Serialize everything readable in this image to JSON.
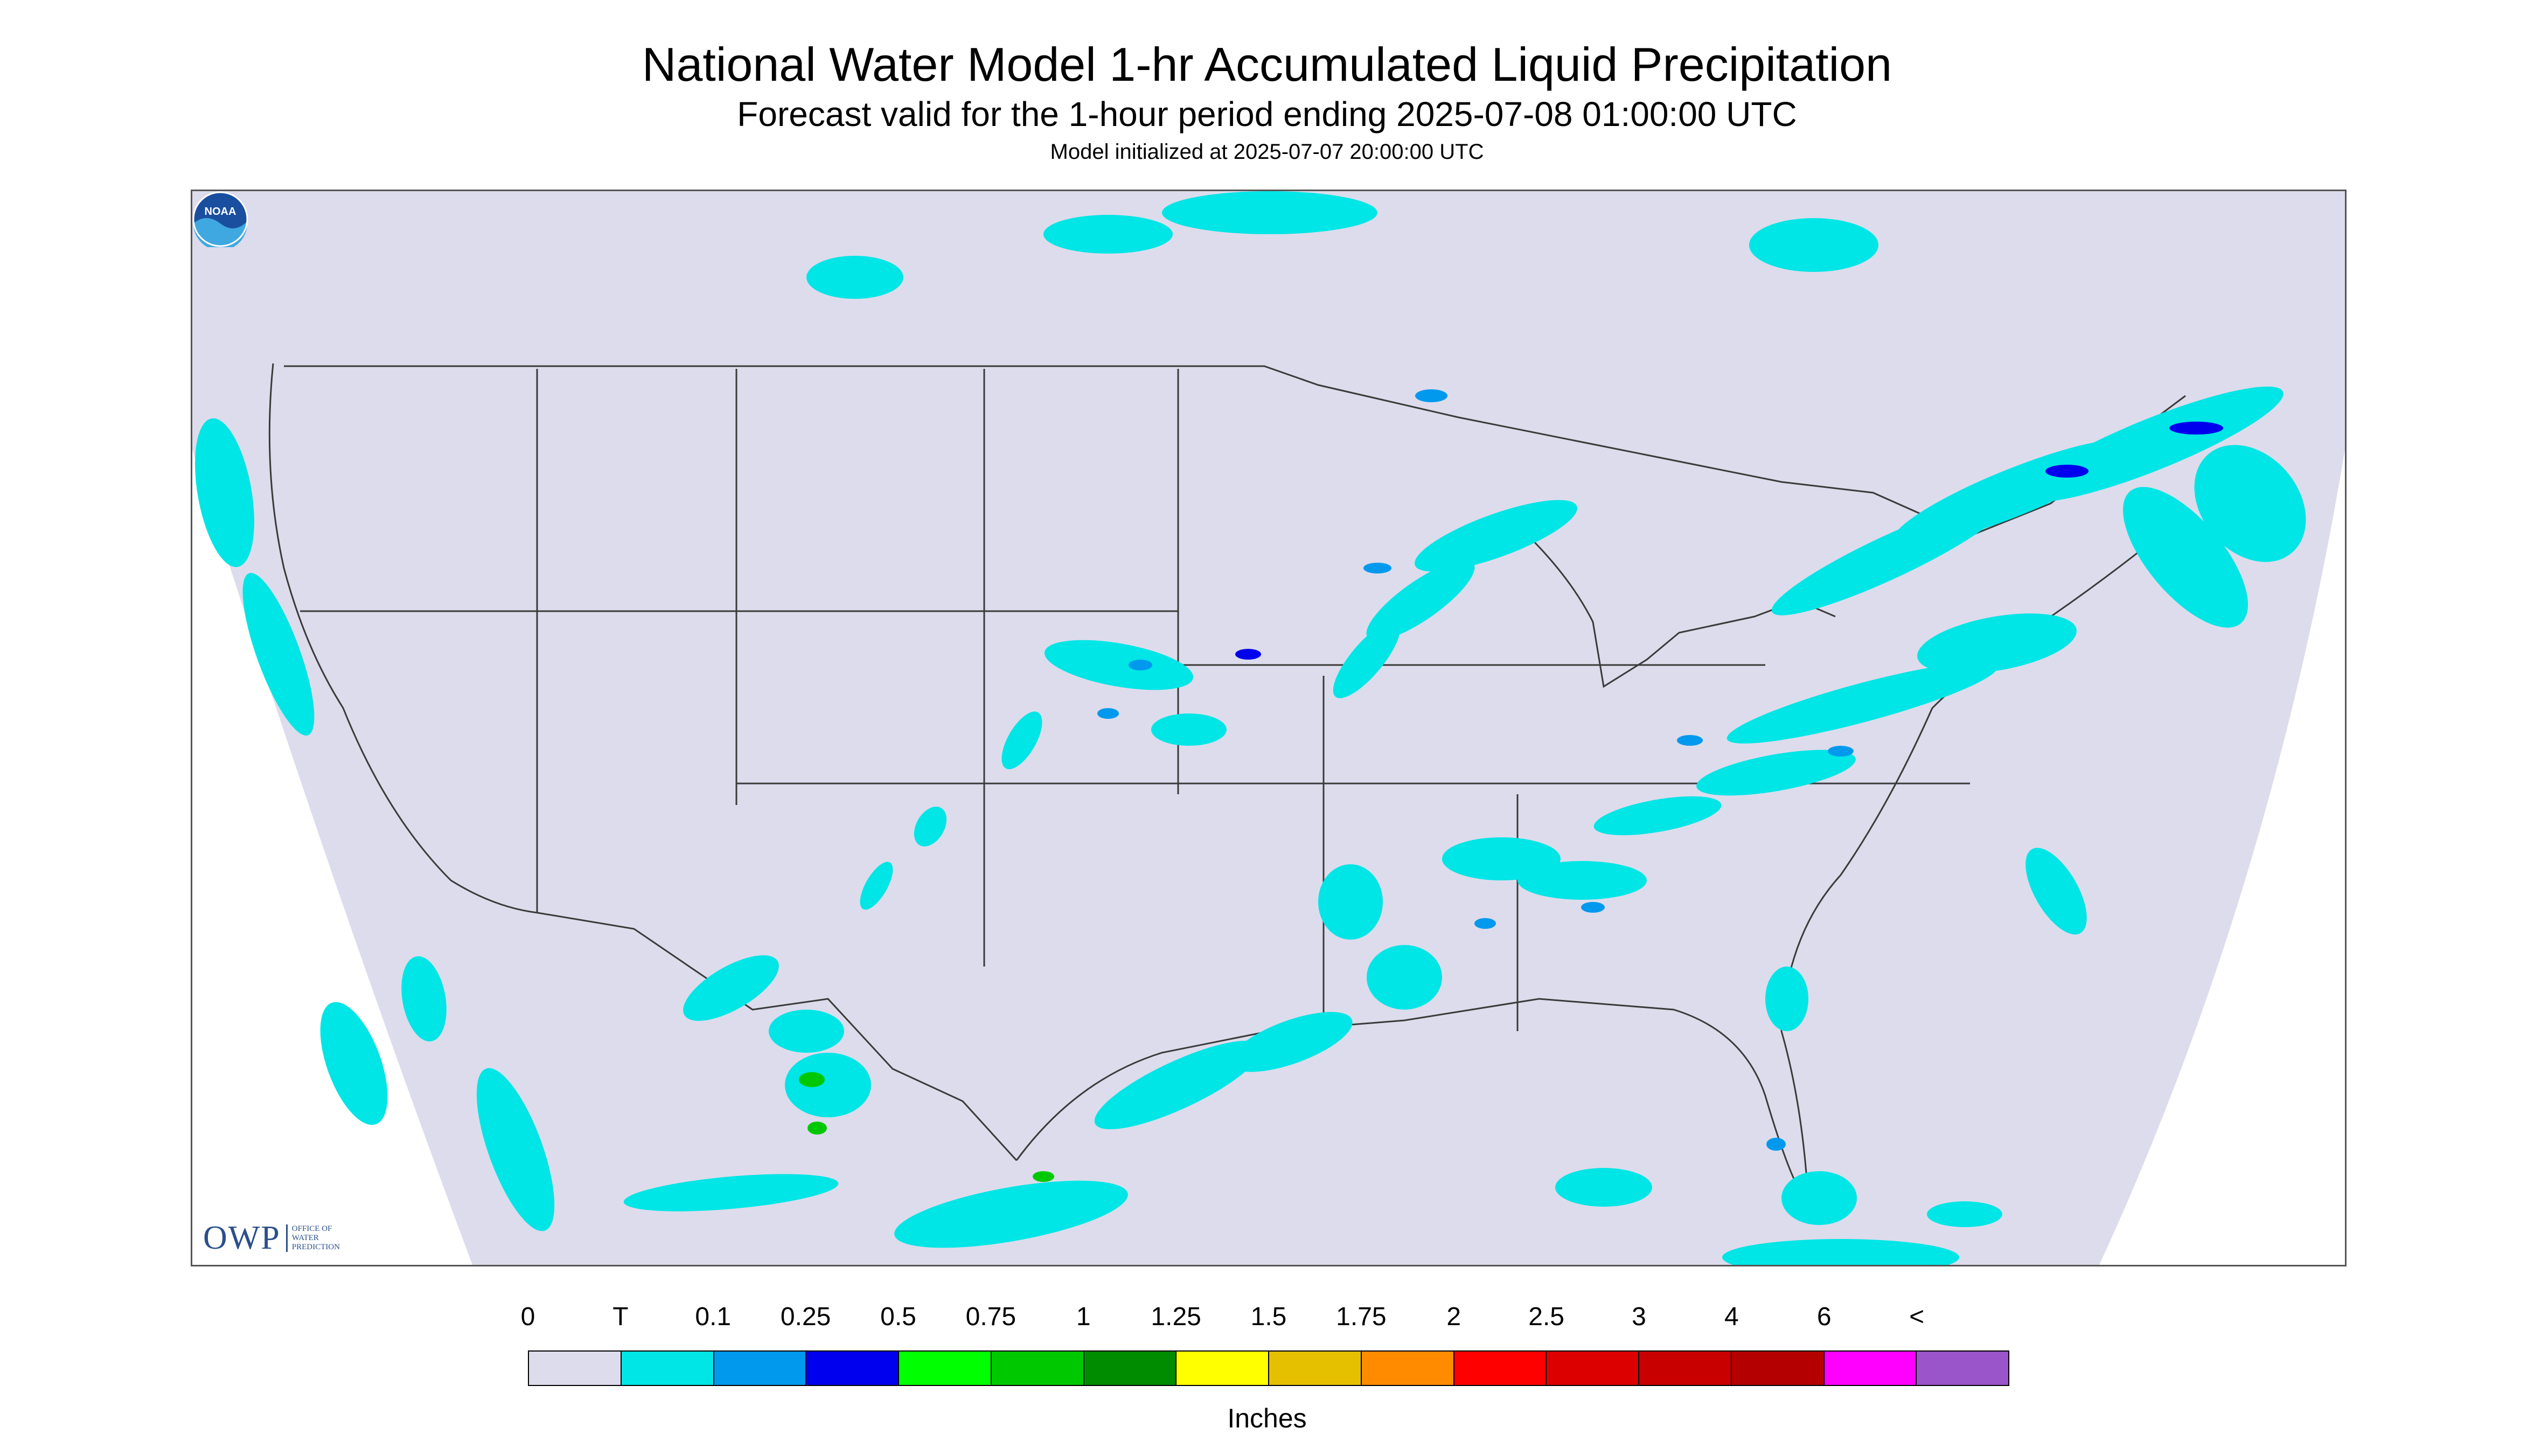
{
  "header": {
    "title": "National Water Model 1-hr Accumulated Liquid Precipitation",
    "subtitle": "Forecast valid for the 1-hour period ending 2025-07-08 01:00:00 UTC",
    "init": "Model initialized at 2025-07-07 20:00:00 UTC"
  },
  "map": {
    "background_color": "#dcdcec",
    "boundary_color": "#3a3a3a",
    "precip_colors": {
      "trace": "#00e5e5",
      "light": "#0099ee",
      "moderate": "#0000ee",
      "green": "#00c800"
    }
  },
  "logos": {
    "owp_big": "OWP",
    "owp_small_1": "OFFICE OF",
    "owp_small_2": "WATER",
    "owp_small_3": "PREDICTION",
    "noaa": "NOAA"
  },
  "legend": {
    "labels": [
      "0",
      "T",
      "0.1",
      "0.25",
      "0.5",
      "0.75",
      "1",
      "1.25",
      "1.5",
      "1.75",
      "2",
      "2.5",
      "3",
      "4",
      "6",
      "<"
    ],
    "colors": [
      "#dcdcec",
      "#00e5e5",
      "#0099ee",
      "#0000ee",
      "#00ff00",
      "#00c800",
      "#008c00",
      "#ffff00",
      "#e5c000",
      "#ff8c00",
      "#ff0000",
      "#dd0000",
      "#c80000",
      "#b40000",
      "#ff00ff",
      "#9955c9"
    ],
    "units": "Inches"
  }
}
